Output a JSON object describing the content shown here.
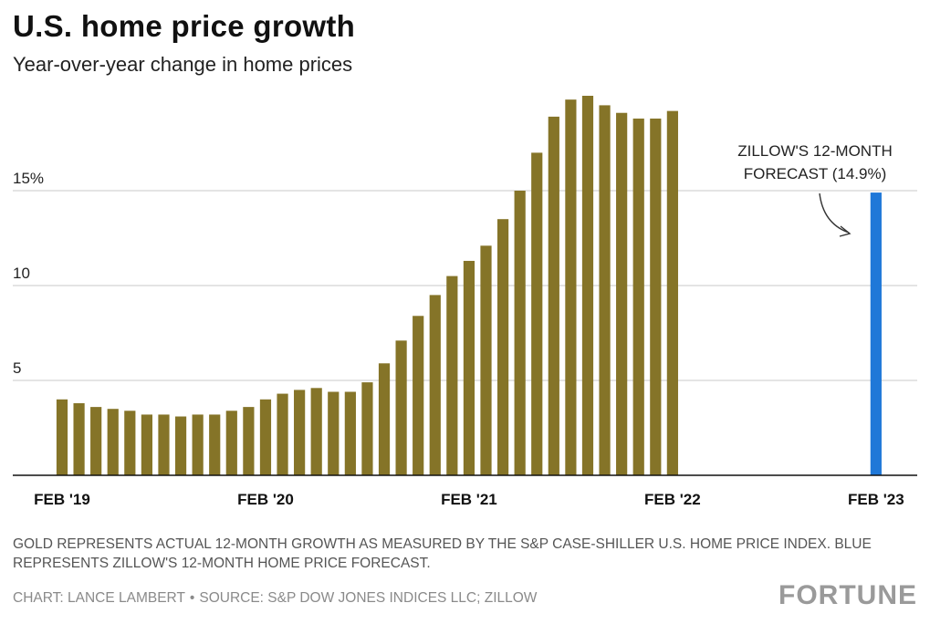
{
  "header": {
    "title": "U.S. home price growth",
    "subtitle": "Year-over-year change in home prices"
  },
  "footer": {
    "note": "Gold represents actual 12-month growth as measured by the S&P Case-Shiller U.S. Home Price Index. Blue represents Zillow's 12-month home price forecast.",
    "chart_credit": "Chart: Lance Lambert",
    "separator": "•",
    "source": "Source: S&P Dow Jones Indices LLC; Zillow",
    "logo": "FORTUNE"
  },
  "colors": {
    "actual": "#857428",
    "forecast": "#1f78d8",
    "grid": "#c8c8c8",
    "axis": "#111111"
  },
  "chart_data": {
    "type": "bar",
    "title": "U.S. home price growth",
    "subtitle": "Year-over-year change in home prices",
    "ylim": [
      0,
      20
    ],
    "y_ticks": [
      {
        "value": 5,
        "label": "5"
      },
      {
        "value": 10,
        "label": "10"
      },
      {
        "value": 15,
        "label": "15%"
      }
    ],
    "x_tick_labels": [
      {
        "index": 0,
        "label": "FEB '19"
      },
      {
        "index": 12,
        "label": "FEB '20"
      },
      {
        "index": 24,
        "label": "FEB '21"
      },
      {
        "index": 36,
        "label": "FEB '22"
      },
      {
        "index": 48,
        "label": "FEB '23"
      }
    ],
    "grid": true,
    "series": [
      {
        "values": [
          4.0,
          3.8,
          3.6,
          3.5,
          3.4,
          3.2,
          3.2,
          3.1,
          3.2,
          3.2,
          3.4,
          3.6,
          4.0,
          4.3,
          4.5,
          4.6,
          4.4,
          4.4,
          4.9,
          5.9,
          7.1,
          8.4,
          9.5,
          10.5,
          11.3,
          12.1,
          13.5,
          15.0,
          17.0,
          18.9,
          19.8,
          20.0,
          19.5,
          19.1,
          18.8,
          18.8,
          19.2
        ],
        "color": "#857428"
      },
      {
        "name": "Zillow's 12-month forecast (14.9%)",
        "index": 48,
        "value": 14.9,
        "color": "#1f78d8"
      }
    ],
    "annotation": {
      "lines": [
        "ZILLOW'S 12-MONTH",
        "FORECAST (14.9%)"
      ]
    }
  }
}
